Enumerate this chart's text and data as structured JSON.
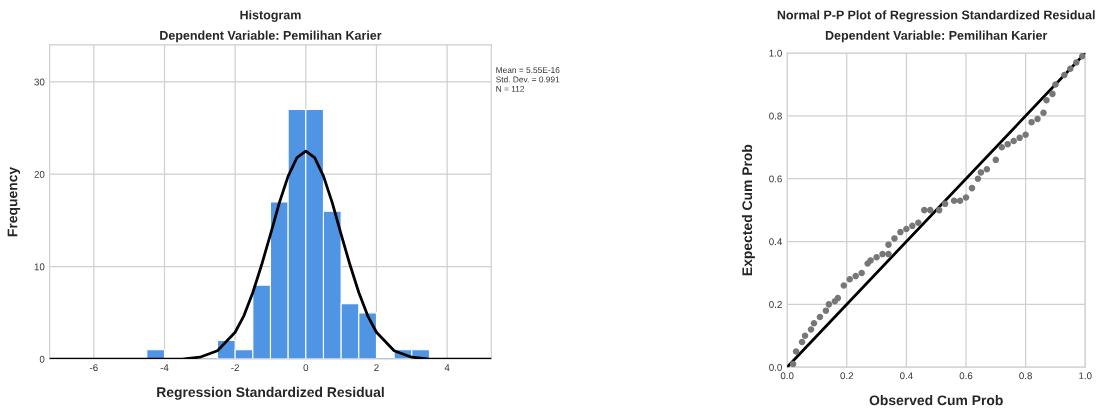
{
  "chart_data": [
    {
      "type": "histogram",
      "title": "Histogram",
      "subtitle": "Dependent Variable: Pemilihan Karier",
      "xlabel": "Regression Standardized Residual",
      "ylabel": "Frequency",
      "bins": [
        -4.5,
        -4,
        -3.5,
        -3,
        -2.5,
        -2,
        -1.5,
        -1,
        -0.5,
        0,
        0.5,
        1,
        1.5,
        2,
        2.5,
        3,
        3.5
      ],
      "series": [
        {
          "color": "#5094e4",
          "values": [
            1,
            0,
            0,
            0,
            2,
            1,
            8,
            17,
            27,
            27,
            16,
            6,
            5,
            0,
            1,
            1
          ]
        },
        {
          "type": "line",
          "color": "#000000",
          "x": [
            -7.25,
            -4,
            -3.5,
            -3,
            -2.5,
            -2,
            -1.75,
            -1.5,
            -1.25,
            -1,
            -0.75,
            -0.5,
            -0.25,
            0,
            0.25,
            0.5,
            0.75,
            1,
            1.25,
            1.5,
            1.75,
            2,
            2.5,
            3,
            3.5,
            4,
            5.25
          ],
          "values": [
            0,
            0,
            0,
            0.2,
            0.9,
            2.9,
            4.7,
            7.2,
            10.2,
            13.5,
            16.9,
            19.8,
            21.8,
            22.5,
            21.8,
            19.8,
            16.9,
            13.5,
            10.2,
            7.2,
            4.7,
            2.9,
            0.9,
            0.2,
            0,
            0,
            0
          ]
        }
      ],
      "xlim": [
        -7.25,
        5.25
      ],
      "xticks": [
        -6,
        -4,
        -2,
        0,
        2,
        4
      ],
      "ylim": [
        0,
        34
      ],
      "yticks": [
        0,
        10,
        20,
        30
      ],
      "grid": true,
      "annotations": [
        "Mean = 5.55E-16",
        "Std. Dev. = 0.991",
        "N = 112"
      ]
    },
    {
      "type": "scatter",
      "title": "Normal P-P Plot of Regression Standardized Residual",
      "subtitle": "Dependent Variable: Pemilihan Karier",
      "xlabel": "Observed Cum Prob",
      "ylabel": "Expected Cum Prob",
      "series": [
        {
          "color": "#777777",
          "marker": "circle",
          "x": [
            0.02,
            0.03,
            0.05,
            0.06,
            0.08,
            0.09,
            0.11,
            0.13,
            0.14,
            0.16,
            0.17,
            0.19,
            0.21,
            0.23,
            0.25,
            0.27,
            0.28,
            0.3,
            0.32,
            0.34,
            0.34,
            0.36,
            0.38,
            0.4,
            0.42,
            0.44,
            0.46,
            0.48,
            0.51,
            0.53,
            0.56,
            0.58,
            0.6,
            0.62,
            0.64,
            0.65,
            0.67,
            0.7,
            0.72,
            0.74,
            0.76,
            0.78,
            0.8,
            0.82,
            0.84,
            0.86,
            0.87,
            0.89,
            0.9,
            0.93,
            0.95,
            0.97,
            0.99
          ],
          "values": [
            0.01,
            0.05,
            0.08,
            0.1,
            0.12,
            0.14,
            0.16,
            0.18,
            0.2,
            0.21,
            0.22,
            0.26,
            0.28,
            0.29,
            0.3,
            0.33,
            0.34,
            0.35,
            0.36,
            0.36,
            0.39,
            0.41,
            0.43,
            0.44,
            0.45,
            0.46,
            0.5,
            0.5,
            0.5,
            0.52,
            0.53,
            0.53,
            0.54,
            0.57,
            0.6,
            0.62,
            0.63,
            0.66,
            0.7,
            0.71,
            0.72,
            0.73,
            0.74,
            0.78,
            0.79,
            0.81,
            0.85,
            0.87,
            0.9,
            0.93,
            0.95,
            0.97,
            0.99
          ]
        },
        {
          "type": "line",
          "color": "#000000",
          "x": [
            0,
            1
          ],
          "values": [
            0,
            1
          ]
        }
      ],
      "xlim": [
        0,
        1
      ],
      "xticks": [
        {
          "value": 0,
          "label": "0.0"
        },
        0.2,
        0.4,
        0.6,
        0.8,
        {
          "value": 1,
          "label": "1.0"
        }
      ],
      "ylim": [
        0,
        1
      ],
      "yticks": [
        {
          "value": 0,
          "label": "0.0"
        },
        0.2,
        0.4,
        0.6,
        0.8,
        {
          "value": 1,
          "label": "1.0"
        }
      ],
      "grid": true
    }
  ]
}
